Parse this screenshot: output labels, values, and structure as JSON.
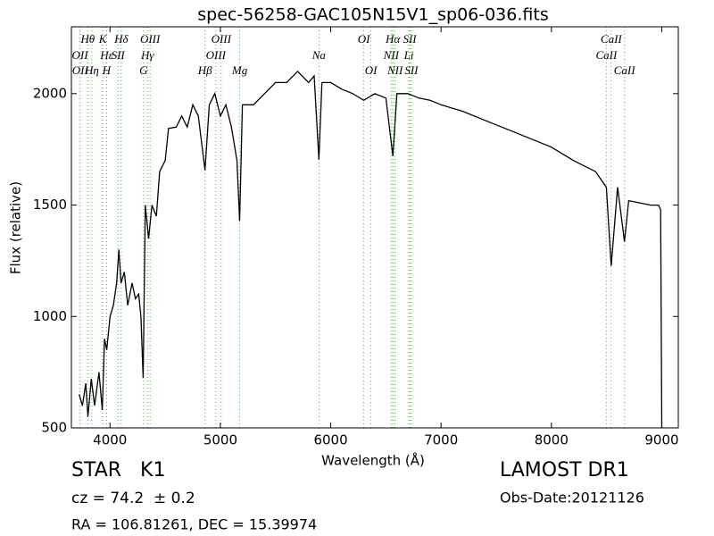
{
  "chart_data": {
    "type": "line",
    "title": "spec-56258-GAC105N15V1_sp06-036.fits",
    "x_label": "Wavelength (Å)",
    "y_label": "Flux (relative)",
    "xlim": [
      3650,
      9150
    ],
    "ylim": [
      500,
      2300
    ],
    "xticks": [
      4000,
      5000,
      6000,
      7000,
      8000,
      9000
    ],
    "yticks": [
      500,
      1000,
      1500,
      2000
    ],
    "color": "#000000",
    "line_color": "#4daf4a",
    "x": [
      3720,
      3750,
      3780,
      3800,
      3830,
      3860,
      3900,
      3930,
      3950,
      3970,
      4000,
      4030,
      4060,
      4080,
      4100,
      4130,
      4160,
      4200,
      4230,
      4260,
      4280,
      4300,
      4320,
      4350,
      4380,
      4420,
      4450,
      4500,
      4530,
      4600,
      4650,
      4700,
      4750,
      4800,
      4861,
      4900,
      4950,
      5000,
      5050,
      5100,
      5150,
      5175,
      5200,
      5300,
      5400,
      5500,
      5600,
      5700,
      5800,
      5850,
      5893,
      5920,
      6000,
      6100,
      6200,
      6300,
      6400,
      6500,
      6563,
      6600,
      6700,
      6800,
      6900,
      7000,
      7200,
      7400,
      7600,
      7800,
      8000,
      8200,
      8400,
      8498,
      8542,
      8600,
      8662,
      8700,
      8800,
      8900,
      8970,
      8990,
      9000
    ],
    "values": [
      650,
      600,
      700,
      550,
      720,
      600,
      750,
      580,
      900,
      850,
      1000,
      1050,
      1150,
      1300,
      1150,
      1200,
      1050,
      1150,
      1080,
      1100,
      1000,
      724,
      1500,
      1350,
      1500,
      1450,
      1650,
      1700,
      1844,
      1850,
      1900,
      1850,
      1950,
      1900,
      1656,
      1950,
      2000,
      1900,
      1950,
      1850,
      1700,
      1428,
      1950,
      1950,
      2000,
      2050,
      2050,
      2100,
      2050,
      2080,
      1704,
      2050,
      2050,
      2020,
      2000,
      1970,
      2000,
      1980,
      1720,
      2000,
      2000,
      1980,
      1970,
      1950,
      1920,
      1880,
      1840,
      1800,
      1760,
      1700,
      1650,
      1580,
      1228,
      1580,
      1336,
      1520,
      1510,
      1500,
      1500,
      1480,
      500
    ],
    "spectral_lines": [
      [
        {
          "label": "Hθ",
          "wavelength": 3798
        },
        {
          "label": "K",
          "wavelength": 3934
        },
        {
          "label": "Hδ",
          "wavelength": 4102
        },
        {
          "label": "OIII",
          "wavelength": 4363
        },
        {
          "label": "OIII",
          "wavelength": 5007
        },
        {
          "label": "OI",
          "wavelength": 6300
        },
        {
          "label": "Hα",
          "wavelength": 6563
        },
        {
          "label": "SII",
          "wavelength": 6716
        },
        {
          "label": "CaII",
          "wavelength": 8542
        }
      ],
      [
        {
          "label": "OII",
          "wavelength": 3727
        },
        {
          "label": "Hε",
          "wavelength": 3970
        },
        {
          "label": "SII",
          "wavelength": 4072
        },
        {
          "label": "Hγ",
          "wavelength": 4340
        },
        {
          "label": "OIII",
          "wavelength": 4959
        },
        {
          "label": "Na",
          "wavelength": 5893
        },
        {
          "label": "NII",
          "wavelength": 6548
        },
        {
          "label": "Li",
          "wavelength": 6708
        },
        {
          "label": "CaII",
          "wavelength": 8498
        }
      ],
      [
        {
          "label": "OII",
          "wavelength": 3729
        },
        {
          "label": "Hη",
          "wavelength": 3835
        },
        {
          "label": "H",
          "wavelength": 3968
        },
        {
          "label": "G",
          "wavelength": 4304
        },
        {
          "label": "Hβ",
          "wavelength": 4861
        },
        {
          "label": "Mg",
          "wavelength": 5175
        },
        {
          "label": "OI",
          "wavelength": 6364
        },
        {
          "label": "NII",
          "wavelength": 6583
        },
        {
          "label": "SII",
          "wavelength": 6731
        },
        {
          "label": "CaII",
          "wavelength": 8662
        }
      ]
    ],
    "info": {
      "object": "STAR   K1",
      "survey": "LAMOST DR1",
      "redshift": "cz = 74.2  ± 0.2",
      "obs_date": "Obs-Date:20121126",
      "coords": "RA = 106.81261, DEC = 15.39974"
    }
  }
}
